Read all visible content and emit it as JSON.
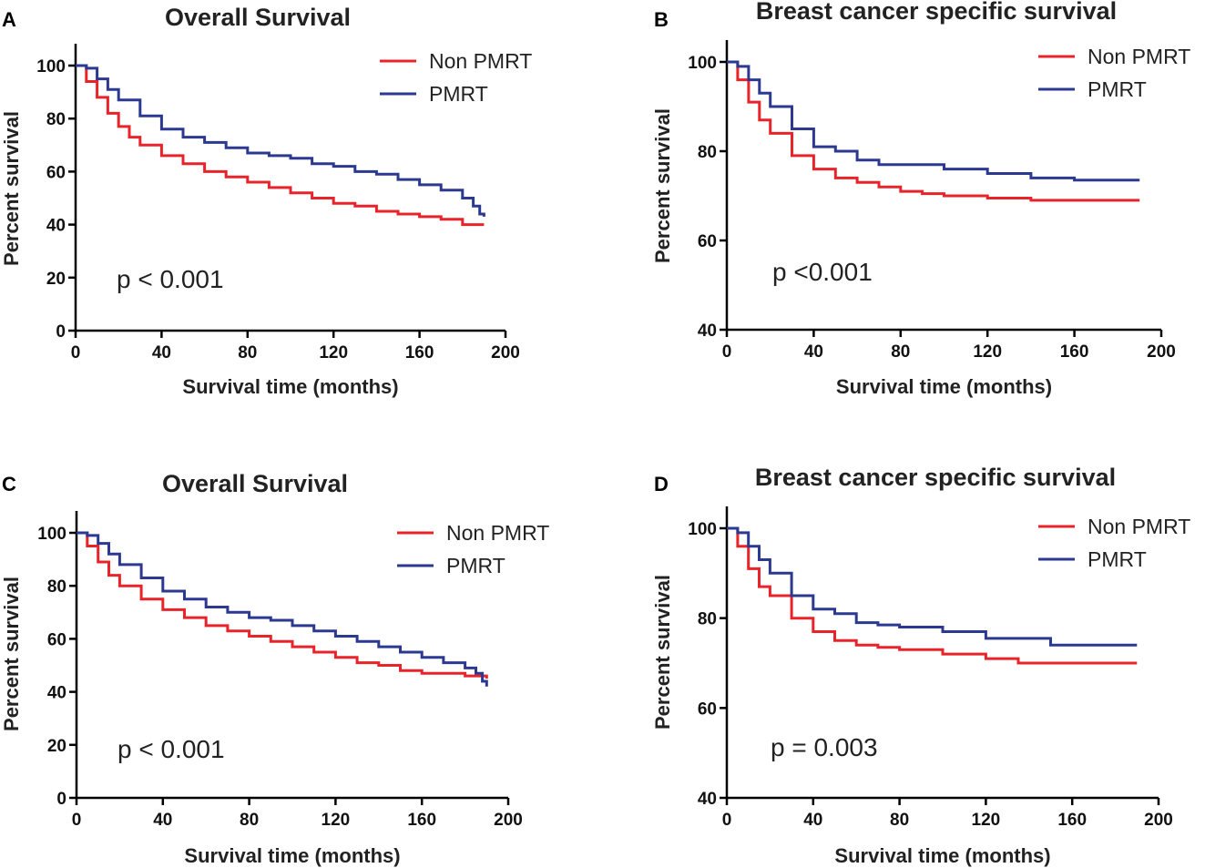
{
  "colors": {
    "non_pmrt": "#e8242a",
    "pmrt": "#2b3990"
  },
  "chart_data": [
    {
      "panel": "A",
      "type": "line",
      "title": "Overall Survival",
      "xlabel": "Survival time (months)",
      "ylabel": "Percent survival",
      "xlim": [
        0,
        200
      ],
      "ylim": [
        0,
        100
      ],
      "xticks": [
        "0",
        "40",
        "80",
        "120",
        "160",
        "200"
      ],
      "yticks": [
        "0",
        "20",
        "40",
        "60",
        "80",
        "100"
      ],
      "annotation": "p < 0.001",
      "series": [
        {
          "name": "Non PMRT",
          "color": "#e8242a",
          "x": [
            0,
            5,
            10,
            15,
            20,
            25,
            30,
            40,
            50,
            60,
            70,
            80,
            90,
            100,
            110,
            120,
            130,
            140,
            150,
            160,
            170,
            180,
            190
          ],
          "y": [
            100,
            94,
            88,
            82,
            77,
            73,
            70,
            66,
            63,
            60,
            58,
            56,
            54,
            52,
            50,
            48,
            47,
            45,
            44,
            43,
            42,
            40,
            40
          ]
        },
        {
          "name": "PMRT",
          "color": "#2b3990",
          "x": [
            0,
            5,
            10,
            15,
            20,
            30,
            40,
            50,
            60,
            70,
            80,
            90,
            100,
            110,
            120,
            130,
            140,
            150,
            160,
            170,
            180,
            185,
            188,
            190
          ],
          "y": [
            100,
            99,
            95,
            91,
            87,
            81,
            76,
            73,
            71,
            69,
            67,
            66,
            65,
            63,
            62,
            60,
            59,
            57,
            55,
            53,
            50,
            47,
            44,
            43
          ]
        }
      ]
    },
    {
      "panel": "B",
      "type": "line",
      "title": "Breast cancer specific survival",
      "xlabel": "Survival time (months)",
      "ylabel": "Percent survival",
      "xlim": [
        0,
        200
      ],
      "ylim": [
        40,
        100
      ],
      "xticks": [
        "0",
        "40",
        "80",
        "120",
        "160",
        "200"
      ],
      "yticks": [
        "40",
        "60",
        "80",
        "100"
      ],
      "annotation": "p <0.001",
      "series": [
        {
          "name": "Non PMRT",
          "color": "#e8242a",
          "x": [
            0,
            5,
            10,
            15,
            20,
            30,
            40,
            50,
            60,
            70,
            80,
            90,
            100,
            120,
            140,
            160,
            190
          ],
          "y": [
            100,
            96,
            91,
            87,
            84,
            79,
            76,
            74,
            73,
            72,
            71,
            70.5,
            70,
            69.5,
            69,
            69,
            69
          ]
        },
        {
          "name": "PMRT",
          "color": "#2b3990",
          "x": [
            0,
            5,
            10,
            15,
            20,
            30,
            40,
            50,
            60,
            70,
            80,
            100,
            120,
            140,
            160,
            190
          ],
          "y": [
            100,
            99,
            96,
            93,
            90,
            85,
            81,
            80,
            78,
            77,
            77,
            76,
            75,
            74,
            73.5,
            73.5
          ]
        }
      ]
    },
    {
      "panel": "C",
      "type": "line",
      "title": "Overall Survival",
      "xlabel": "Survival time (months)",
      "ylabel": "Percent survival",
      "xlim": [
        0,
        200
      ],
      "ylim": [
        0,
        100
      ],
      "xticks": [
        "0",
        "40",
        "80",
        "120",
        "160",
        "200"
      ],
      "yticks": [
        "0",
        "20",
        "40",
        "60",
        "80",
        "100"
      ],
      "annotation": "p < 0.001",
      "series": [
        {
          "name": "Non PMRT",
          "color": "#e8242a",
          "x": [
            0,
            5,
            10,
            15,
            20,
            30,
            40,
            50,
            60,
            70,
            80,
            90,
            100,
            110,
            120,
            130,
            140,
            150,
            160,
            170,
            180,
            190
          ],
          "y": [
            100,
            95,
            89,
            84,
            80,
            75,
            71,
            68,
            65,
            63,
            61,
            59,
            57,
            55,
            53,
            51,
            50,
            48,
            47,
            47,
            46,
            45
          ]
        },
        {
          "name": "PMRT",
          "color": "#2b3990",
          "x": [
            0,
            5,
            10,
            15,
            20,
            30,
            40,
            50,
            60,
            70,
            80,
            90,
            100,
            110,
            120,
            130,
            140,
            150,
            160,
            170,
            180,
            185,
            188,
            190
          ],
          "y": [
            100,
            99,
            96,
            92,
            88,
            83,
            78,
            75,
            72,
            70,
            68,
            67,
            65,
            63,
            61,
            59,
            57,
            55,
            53,
            51,
            49,
            47,
            44,
            42
          ]
        }
      ]
    },
    {
      "panel": "D",
      "type": "line",
      "title": "Breast cancer specific survival",
      "xlabel": "Survival time (months)",
      "ylabel": "Percent survival",
      "xlim": [
        0,
        200
      ],
      "ylim": [
        40,
        100
      ],
      "xticks": [
        "0",
        "40",
        "80",
        "120",
        "160",
        "200"
      ],
      "yticks": [
        "40",
        "60",
        "80",
        "100"
      ],
      "annotation": "p = 0.003",
      "series": [
        {
          "name": "Non PMRT",
          "color": "#e8242a",
          "x": [
            0,
            5,
            10,
            15,
            20,
            30,
            40,
            50,
            60,
            70,
            80,
            100,
            120,
            135,
            160,
            190
          ],
          "y": [
            100,
            96,
            91,
            87,
            85,
            80,
            77,
            75,
            74,
            73.5,
            73,
            72,
            71,
            70,
            70,
            70
          ]
        },
        {
          "name": "PMRT",
          "color": "#2b3990",
          "x": [
            0,
            5,
            10,
            15,
            20,
            30,
            40,
            50,
            60,
            70,
            80,
            100,
            120,
            150,
            190
          ],
          "y": [
            100,
            99,
            96,
            93,
            90,
            85,
            82,
            81,
            79,
            78.5,
            78,
            77,
            75.5,
            74,
            74
          ]
        }
      ]
    }
  ]
}
